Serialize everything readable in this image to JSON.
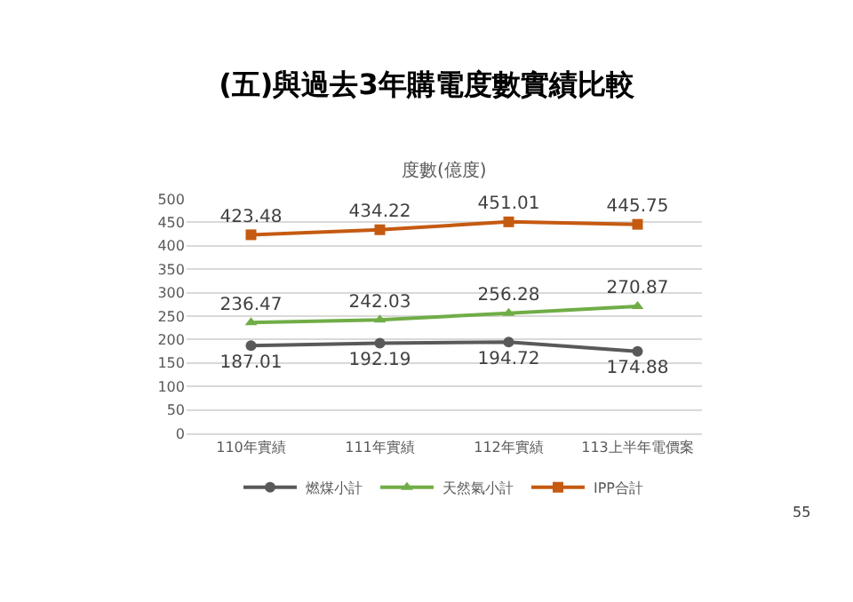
{
  "chart_data": {
    "type": "line",
    "title": "(五)與過去3年購電度數實績比較",
    "subtitle": "度數(億度)",
    "categories": [
      "110年實績",
      "111年實績",
      "112年實績",
      "113上半年電價案"
    ],
    "series": [
      {
        "name": "燃煤小計",
        "color": "#595959",
        "marker": "circle",
        "values": [
          187.01,
          192.19,
          194.72,
          174.88
        ]
      },
      {
        "name": "天然氣小計",
        "color": "#70ad47",
        "marker": "triangle",
        "values": [
          236.47,
          242.03,
          256.28,
          270.87
        ]
      },
      {
        "name": "IPP合計",
        "color": "#c55a11",
        "marker": "square",
        "values": [
          423.48,
          434.22,
          451.01,
          445.75
        ]
      }
    ],
    "ylim": [
      0,
      500
    ],
    "yticks": [
      0,
      50,
      100,
      150,
      200,
      250,
      300,
      350,
      400,
      450,
      500
    ],
    "grid": "y",
    "legend": "bottom",
    "data_labels": true,
    "line_style": "solid",
    "annotations": [
      "55"
    ]
  }
}
